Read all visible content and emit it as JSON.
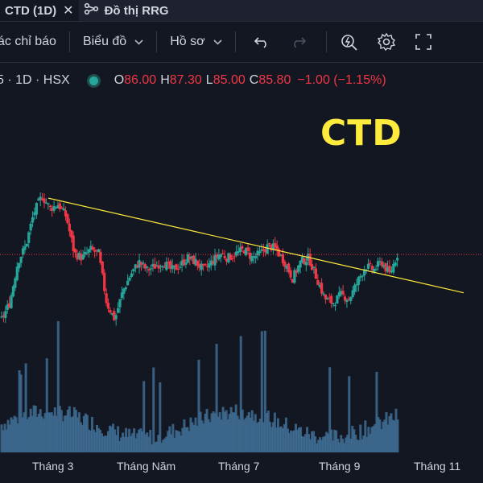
{
  "tabs": [
    {
      "label": "CTD (1D)",
      "close": "✕"
    },
    {
      "label": "Đồ thị RRG"
    }
  ],
  "toolbar": {
    "indicators": "ác chỉ báo",
    "chart_type": "Biểu đồ",
    "profile": "Hồ sơ",
    "icons": [
      "undo-icon",
      "redo-icon",
      "alert-icon",
      "gear-icon",
      "fullscreen-icon"
    ]
  },
  "symbol": {
    "label": "5 · 1D · HSX",
    "open_label": "O",
    "open": "86.00",
    "high_label": "H",
    "high": "87.30",
    "low_label": "L",
    "low": "85.00",
    "close_label": "C",
    "close": "85.80",
    "change": "−1.00 (−1.15%)"
  },
  "annotation": "CTD",
  "colors": {
    "up": "#26a69a",
    "down": "#f23645",
    "trendline": "#ffeb3b",
    "volume": "#3f6d94",
    "background": "#131722"
  },
  "x_axis": [
    "Tháng 3",
    "Tháng Năm",
    "Tháng 7",
    "Tháng 9",
    "Tháng 11"
  ],
  "chart_data": {
    "type": "candlestick",
    "price_line": 85.8,
    "trendline_start_date": "Tháng 3",
    "trendline_end_date": "Tháng 11",
    "series_shape": [
      [
        0,
        70
      ],
      [
        10,
        74
      ],
      [
        20,
        84
      ],
      [
        30,
        88
      ],
      [
        40,
        96
      ],
      [
        50,
        100
      ],
      [
        60,
        97
      ],
      [
        70,
        98
      ],
      [
        80,
        95
      ],
      [
        90,
        86
      ],
      [
        100,
        85
      ],
      [
        110,
        87
      ],
      [
        120,
        86
      ],
      [
        130,
        74
      ],
      [
        140,
        70
      ],
      [
        150,
        77
      ],
      [
        160,
        81
      ],
      [
        170,
        84
      ],
      [
        180,
        82
      ],
      [
        190,
        83
      ],
      [
        200,
        84
      ],
      [
        210,
        82
      ],
      [
        220,
        83
      ],
      [
        230,
        85
      ],
      [
        240,
        84
      ],
      [
        250,
        82
      ],
      [
        260,
        84
      ],
      [
        270,
        86
      ],
      [
        280,
        85
      ],
      [
        290,
        86
      ],
      [
        300,
        87
      ],
      [
        310,
        85
      ],
      [
        320,
        86
      ],
      [
        330,
        88
      ],
      [
        340,
        87
      ],
      [
        350,
        84
      ],
      [
        360,
        80
      ],
      [
        370,
        84
      ],
      [
        380,
        85
      ],
      [
        390,
        80
      ],
      [
        400,
        75
      ],
      [
        410,
        74
      ],
      [
        420,
        76
      ],
      [
        430,
        75
      ],
      [
        440,
        79
      ],
      [
        450,
        83
      ],
      [
        460,
        82
      ],
      [
        470,
        84
      ],
      [
        480,
        81
      ],
      [
        490,
        86
      ]
    ]
  }
}
